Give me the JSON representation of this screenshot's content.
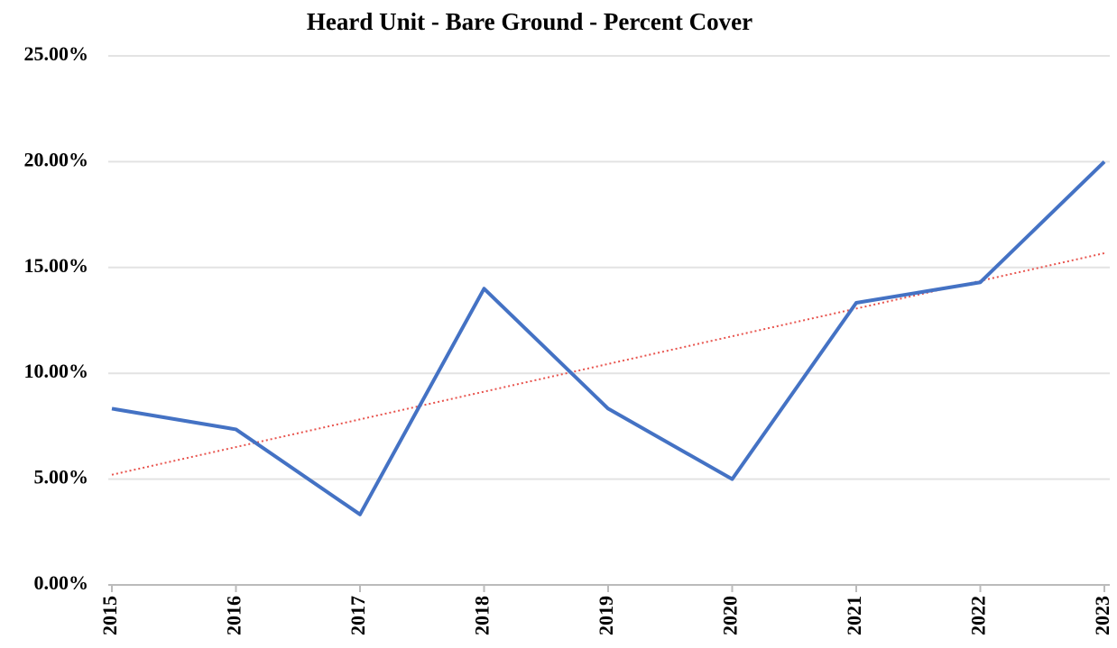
{
  "chart_data": {
    "type": "line",
    "title": "Heard Unit - Bare Ground - Percent Cover",
    "x": [
      2015,
      2016,
      2017,
      2018,
      2019,
      2020,
      2021,
      2022,
      2023
    ],
    "xlim": [
      2015,
      2023
    ],
    "xticks": [
      2015,
      2016,
      2017,
      2018,
      2019,
      2020,
      2021,
      2022,
      2023
    ],
    "series": [
      {
        "name": "Bare Ground",
        "color": "#4472c4",
        "values": [
          8.33,
          7.35,
          3.33,
          14.0,
          8.33,
          5.0,
          13.33,
          14.3,
          20.0
        ]
      }
    ],
    "ylim": [
      0,
      25
    ],
    "yticks": [
      {
        "value": 0,
        "label": "0.00%"
      },
      {
        "value": 5,
        "label": "5.00%"
      },
      {
        "value": 10,
        "label": "10.00%"
      },
      {
        "value": 15,
        "label": "15.00%"
      },
      {
        "value": 20,
        "label": "20.00%"
      },
      {
        "value": 25,
        "label": "25.00%"
      }
    ],
    "grid": true,
    "trendline": {
      "type": "linear",
      "color": "#e8544e"
    }
  }
}
